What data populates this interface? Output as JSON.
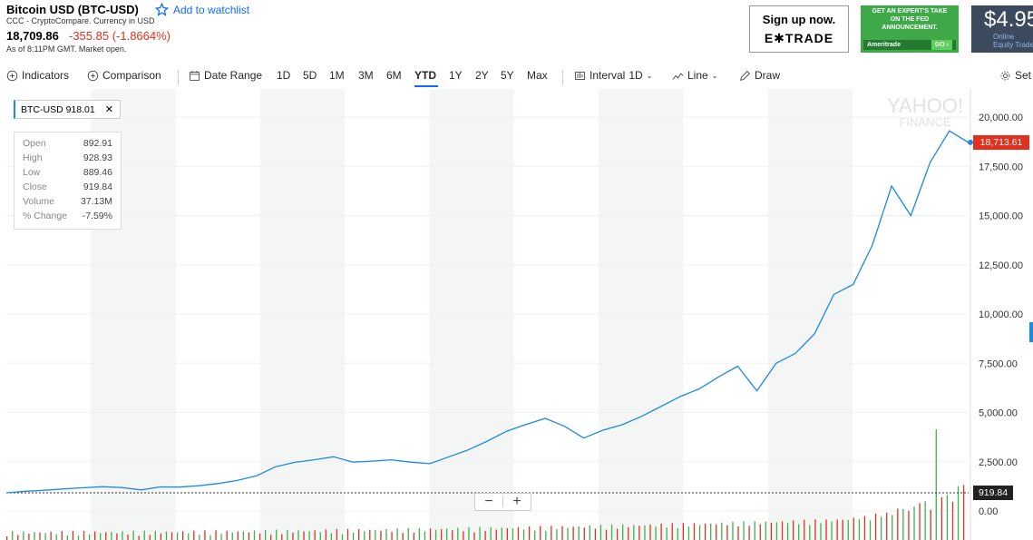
{
  "header": {
    "title": "Bitcoin USD (BTC-USD)",
    "watchlist_label": "Add to watchlist",
    "source": "CCC - CryptoCompare. Currency in USD",
    "price": "18,709.86",
    "change": "-355.85 (-1.8664%)",
    "as_of": "As of 8:11PM GMT. Market open."
  },
  "ads": {
    "etrade": {
      "line1": "Sign up now.",
      "line2": "E✱TRADE"
    },
    "ameritrade": {
      "line1": "GET AN EXPERT'S TAKE",
      "line2": "ON THE FED",
      "line3": "ANNOUNCEMENT.",
      "brand": "Ameritrade",
      "go": "GO ›"
    },
    "price": {
      "big": "$4.95",
      "line1": "Online",
      "line2": "Equity Trade"
    }
  },
  "toolbar": {
    "indicators": "Indicators",
    "comparison": "Comparison",
    "date_range": "Date Range",
    "ranges": [
      "1D",
      "5D",
      "1M",
      "3M",
      "6M",
      "YTD",
      "1Y",
      "2Y",
      "5Y",
      "Max"
    ],
    "active_range": "YTD",
    "interval": "Interval",
    "interval_value": "1D",
    "line": "Line",
    "draw": "Draw",
    "settings": "Set"
  },
  "legend": {
    "symbol": "BTC-USD",
    "value": "918.01",
    "close": "✕"
  },
  "ohlc": [
    {
      "label": "Open",
      "value": "892.91"
    },
    {
      "label": "High",
      "value": "928.93"
    },
    {
      "label": "Low",
      "value": "889.46"
    },
    {
      "label": "Close",
      "value": "919.84"
    },
    {
      "label": "Volume",
      "value": "37.13M"
    },
    {
      "label": "% Change",
      "value": "-7.59%"
    }
  ],
  "watermark": {
    "line1": "YAHOO!",
    "line2": "FINANCE"
  },
  "current_price_tag": "18,713.61",
  "close_tag": "919.84",
  "zoom": {
    "minus": "−",
    "plus": "+"
  },
  "colors": {
    "line": "#1e88e5",
    "down": "#e0301e",
    "up": "#3cb44b",
    "accent": "#0f69ff"
  },
  "chart_data": {
    "type": "line",
    "series": [
      {
        "name": "BTC-USD",
        "x": [
          0,
          6,
          12,
          18,
          24,
          30,
          36,
          42,
          48,
          54,
          60,
          66,
          72,
          78,
          84,
          90,
          96,
          102,
          108,
          114,
          120,
          126,
          132,
          138,
          144,
          150,
          156,
          162,
          168,
          174,
          180,
          186,
          192,
          198,
          204,
          210,
          216,
          222,
          228,
          234,
          240,
          246,
          252,
          258,
          264,
          270,
          276,
          282,
          288,
          294,
          300,
          306,
          312,
          318,
          324,
          330,
          336,
          342,
          348,
          354
        ],
        "values": [
          920,
          1000,
          1050,
          1120,
          1180,
          1230,
          1190,
          1070,
          1220,
          1210,
          1280,
          1390,
          1550,
          1790,
          2250,
          2470,
          2600,
          2750,
          2480,
          2530,
          2600,
          2480,
          2400,
          2750,
          3100,
          3550,
          4050,
          4390,
          4700,
          4300,
          3700,
          4100,
          4380,
          4800,
          5300,
          5800,
          6200,
          6800,
          7350,
          6100,
          7500,
          8000,
          9000,
          11000,
          11500,
          13500,
          16500,
          15000,
          17700,
          19300,
          18700,
          18713,
          18713,
          18713,
          18713,
          18713,
          18713,
          18713,
          18713,
          18713
        ]
      }
    ],
    "close_reference": 919.84,
    "ylim": [
      0,
      20000
    ],
    "yticks": [
      "20,000.00",
      "17,500.00",
      "15,000.00",
      "12,500.00",
      "10,000.00",
      "7,500.00",
      "5,000.00",
      "2,500.00",
      "0.00"
    ],
    "grid": true
  }
}
